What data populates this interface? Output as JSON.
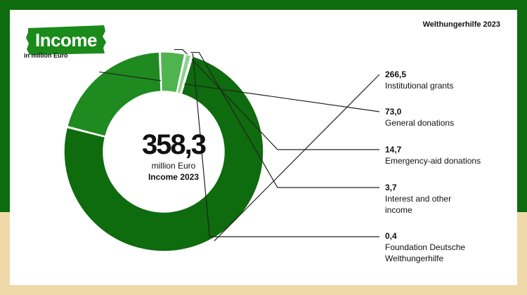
{
  "header": {
    "title": "Income",
    "unit_note": "in million Euro",
    "organization": "Welthungerhilfe 2023"
  },
  "center": {
    "total": "358,3",
    "unit": "million Euro",
    "caption": "Income 2023"
  },
  "colors": {
    "background_band": "#0e6b0e",
    "background_bottom": "#f0d9a8",
    "card": "#ffffff",
    "brand_green": "#1a8a1a"
  },
  "chart_data": {
    "type": "pie",
    "style": "donut",
    "total": 358.3,
    "unit": "million Euro",
    "slices": [
      {
        "label": "Institutional grants",
        "value": 266.5,
        "value_label": "266,5",
        "color": "#0e6b0e"
      },
      {
        "label": "General donations",
        "value": 73.0,
        "value_label": "73,0",
        "color": "#1f8a1f"
      },
      {
        "label": "Emergency-aid donations",
        "value": 14.7,
        "value_label": "14,7",
        "color": "#4fb34f"
      },
      {
        "label": "Interest and other income",
        "value": 3.7,
        "value_label": "3,7",
        "color": "#8fd08f"
      },
      {
        "label": "Foundation Deutsche Welthungerhilfe",
        "value": 0.4,
        "value_label": "0,4",
        "color": "#f2a23a"
      }
    ],
    "legend_placement": "right"
  }
}
